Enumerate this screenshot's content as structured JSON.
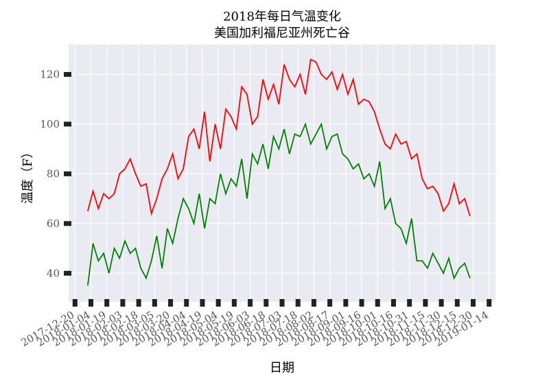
{
  "chart_data": {
    "type": "line",
    "title": "2018年每日气温变化\n美国加利福尼亚州死亡谷",
    "title_lines": [
      "2018年每日气温变化",
      "美国加利福尼亚州死亡谷"
    ],
    "x_label": "日期",
    "y_label": "温度（F）",
    "x": [
      "2018-01-01",
      "2018-01-06",
      "2018-01-11",
      "2018-01-16",
      "2018-01-21",
      "2018-01-26",
      "2018-01-31",
      "2018-02-05",
      "2018-02-10",
      "2018-02-15",
      "2018-02-20",
      "2018-02-25",
      "2018-03-02",
      "2018-03-07",
      "2018-03-12",
      "2018-03-17",
      "2018-03-22",
      "2018-03-27",
      "2018-04-01",
      "2018-04-06",
      "2018-04-11",
      "2018-04-16",
      "2018-04-21",
      "2018-04-26",
      "2018-05-01",
      "2018-05-06",
      "2018-05-11",
      "2018-05-16",
      "2018-05-21",
      "2018-05-26",
      "2018-05-31",
      "2018-06-05",
      "2018-06-10",
      "2018-06-15",
      "2018-06-20",
      "2018-06-25",
      "2018-06-30",
      "2018-07-05",
      "2018-07-10",
      "2018-07-15",
      "2018-07-20",
      "2018-07-25",
      "2018-07-30",
      "2018-08-04",
      "2018-08-09",
      "2018-08-14",
      "2018-08-19",
      "2018-08-24",
      "2018-08-29",
      "2018-09-03",
      "2018-09-08",
      "2018-09-13",
      "2018-09-18",
      "2018-09-23",
      "2018-09-28",
      "2018-10-03",
      "2018-10-08",
      "2018-10-13",
      "2018-10-18",
      "2018-10-23",
      "2018-10-28",
      "2018-11-02",
      "2018-11-07",
      "2018-11-12",
      "2018-11-17",
      "2018-11-22",
      "2018-11-27",
      "2018-12-02",
      "2018-12-07",
      "2018-12-12",
      "2018-12-17",
      "2018-12-22",
      "2018-12-27"
    ],
    "series": [
      {
        "color": "#ff0000",
        "values": [
          65,
          73,
          66,
          72,
          70,
          72,
          80,
          82,
          86,
          80,
          75,
          76,
          64,
          70,
          78,
          82,
          88,
          78,
          82,
          95,
          98,
          90,
          105,
          85,
          100,
          90,
          106,
          103,
          98,
          115,
          112,
          100,
          103,
          118,
          110,
          116,
          108,
          124,
          118,
          115,
          120,
          112,
          126,
          125,
          120,
          118,
          121,
          114,
          120,
          112,
          118,
          108,
          110,
          109,
          105,
          98,
          92,
          90,
          96,
          92,
          93,
          86,
          88,
          78,
          74,
          75,
          72,
          65,
          68,
          76,
          68,
          70,
          63
        ]
      },
      {
        "color": "#008000",
        "values": [
          35,
          52,
          45,
          48,
          40,
          50,
          46,
          53,
          48,
          50,
          42,
          38,
          45,
          55,
          42,
          58,
          52,
          62,
          70,
          66,
          60,
          72,
          58,
          70,
          68,
          80,
          72,
          78,
          75,
          86,
          70,
          88,
          84,
          92,
          82,
          95,
          90,
          98,
          88,
          96,
          95,
          100,
          92,
          96,
          100,
          90,
          95,
          96,
          88,
          86,
          82,
          84,
          78,
          80,
          75,
          85,
          66,
          70,
          60,
          58,
          52,
          62,
          45,
          45,
          42,
          48,
          44,
          40,
          46,
          38,
          42,
          44,
          38
        ]
      }
    ],
    "xlim": [
      "2017-12-14",
      "2019-01-20"
    ],
    "xticks": [
      "2017-12-20",
      "2018-01-04",
      "2018-01-19",
      "2018-02-03",
      "2018-02-18",
      "2018-03-05",
      "2018-03-20",
      "2018-04-04",
      "2018-04-19",
      "2018-05-04",
      "2018-05-19",
      "2018-06-03",
      "2018-06-18",
      "2018-07-03",
      "2018-07-18",
      "2018-08-02",
      "2018-08-17",
      "2018-09-01",
      "2018-09-16",
      "2018-10-01",
      "2018-10-16",
      "2018-10-31",
      "2018-11-15",
      "2018-11-30",
      "2018-12-15",
      "2018-12-30",
      "2019-01-14"
    ],
    "ylim": [
      28.5,
      132
    ],
    "yticks": [
      40,
      60,
      80,
      100,
      120
    ],
    "grid": true
  }
}
